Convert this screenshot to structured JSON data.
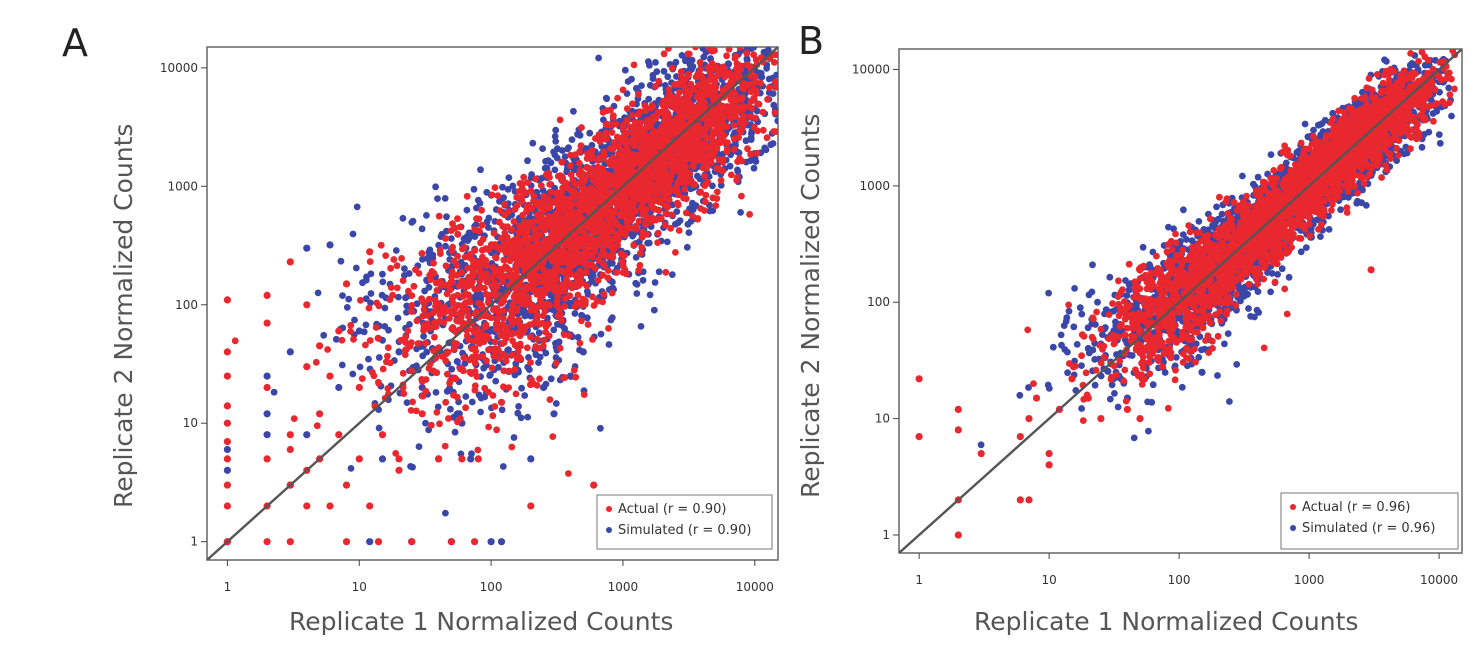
{
  "figure": {
    "panels": [
      {
        "letter": "A",
        "xlabel": "Replicate 1 Normalized Counts",
        "ylabel": "Replicate 2 Normalized Counts"
      },
      {
        "letter": "B",
        "xlabel": "Replicate 1 Normalized Counts",
        "ylabel": "Replicate 2 Normalized Counts"
      }
    ]
  },
  "colors": {
    "actual": "#e8282e",
    "simulated": "#3a46a8",
    "diagonal": "#555555",
    "frame": "#666666"
  },
  "chart_data": [
    {
      "type": "scatter",
      "panel": "A",
      "xlabel": "Replicate 1 Normalized Counts",
      "ylabel": "Replicate 2 Normalized Counts",
      "xscale": "log",
      "yscale": "log",
      "xlim": [
        0.7,
        15000
      ],
      "ylim": [
        0.7,
        15000
      ],
      "xticks": [
        "1",
        "10",
        "100",
        "1000",
        "10000"
      ],
      "yticks": [
        "1",
        "10",
        "100",
        "1000",
        "10000"
      ],
      "reference_line": "y = x",
      "legend_position": "bottom-right",
      "series": [
        {
          "name": "Actual (r = 0.90)",
          "color": "#e8282e",
          "r": 0.9,
          "spread_dex": 0.22,
          "points": [
            [
              1,
              1
            ],
            [
              1,
              2
            ],
            [
              1,
              3
            ],
            [
              1,
              5
            ],
            [
              1,
              7
            ],
            [
              1,
              10
            ],
            [
              1,
              14
            ],
            [
              1,
              25
            ],
            [
              1,
              40
            ],
            [
              1,
              110
            ],
            [
              2,
              1
            ],
            [
              2,
              2
            ],
            [
              2,
              5
            ],
            [
              2,
              20
            ],
            [
              2,
              70
            ],
            [
              2,
              120
            ],
            [
              3,
              1
            ],
            [
              3,
              3
            ],
            [
              3,
              6
            ],
            [
              3,
              8
            ],
            [
              3,
              230
            ],
            [
              4,
              2
            ],
            [
              4,
              4
            ],
            [
              4,
              30
            ],
            [
              4,
              100
            ],
            [
              5,
              5
            ],
            [
              5,
              12
            ],
            [
              5,
              45
            ],
            [
              6,
              2
            ],
            [
              6,
              25
            ],
            [
              7,
              8
            ],
            [
              7,
              60
            ],
            [
              8,
              1
            ],
            [
              8,
              3
            ],
            [
              8,
              150
            ],
            [
              10,
              5
            ],
            [
              10,
              20
            ],
            [
              12,
              2
            ],
            [
              12,
              280
            ],
            [
              14,
              1
            ],
            [
              15,
              8
            ],
            [
              20,
              5
            ],
            [
              20,
              4
            ],
            [
              25,
              1
            ],
            [
              30,
              12
            ],
            [
              40,
              5
            ],
            [
              50,
              1
            ],
            [
              60,
              5
            ],
            [
              75,
              1
            ],
            [
              80,
              5
            ],
            [
              120,
              15
            ],
            [
              200,
              2
            ],
            [
              600,
              3
            ],
            [
              13000,
              12000
            ]
          ]
        },
        {
          "name": "Simulated (r = 0.90)",
          "color": "#3a46a8",
          "r": 0.9,
          "spread_dex": 0.26,
          "points": [
            [
              1,
              1
            ],
            [
              1,
              4
            ],
            [
              1,
              6
            ],
            [
              2,
              8
            ],
            [
              2,
              12
            ],
            [
              2,
              25
            ],
            [
              3,
              40
            ],
            [
              3,
              3
            ],
            [
              4,
              8
            ],
            [
              4,
              300
            ],
            [
              6,
              320
            ],
            [
              7,
              20
            ],
            [
              10,
              60
            ],
            [
              12,
              1
            ],
            [
              15,
              5
            ],
            [
              20,
              40
            ],
            [
              25,
              1
            ],
            [
              30,
              20
            ],
            [
              40,
              5
            ],
            [
              50,
              1
            ],
            [
              60,
              10
            ],
            [
              70,
              5
            ],
            [
              100,
              1
            ],
            [
              120,
              1
            ],
            [
              200,
              5
            ],
            [
              250,
              20
            ],
            [
              300,
              12
            ],
            [
              400,
              25
            ],
            [
              500,
              40
            ],
            [
              8000,
              9000
            ]
          ]
        }
      ]
    },
    {
      "type": "scatter",
      "panel": "B",
      "xlabel": "Replicate 1 Normalized Counts",
      "ylabel": "Replicate 2 Normalized Counts",
      "xscale": "log",
      "yscale": "log",
      "xlim": [
        0.7,
        15000
      ],
      "ylim": [
        0.7,
        15000
      ],
      "xticks": [
        "1",
        "10",
        "100",
        "1000",
        "10000"
      ],
      "yticks": [
        "1",
        "10",
        "100",
        "1000",
        "10000"
      ],
      "reference_line": "y = x",
      "legend_position": "bottom-right",
      "series": [
        {
          "name": "Actual (r = 0.96)",
          "color": "#e8282e",
          "r": 0.96,
          "spread_dex": 0.12,
          "points": [
            [
              1,
              7
            ],
            [
              1,
              22
            ],
            [
              2,
              1
            ],
            [
              2,
              2
            ],
            [
              2,
              8
            ],
            [
              2,
              12
            ],
            [
              3,
              5
            ],
            [
              6,
              2
            ],
            [
              6,
              7
            ],
            [
              7,
              2
            ],
            [
              7,
              10
            ],
            [
              8,
              15
            ],
            [
              10,
              4
            ],
            [
              10,
              5
            ],
            [
              12,
              12
            ],
            [
              15,
              22
            ],
            [
              20,
              15
            ],
            [
              25,
              10
            ],
            [
              40,
              12
            ],
            [
              50,
              10
            ],
            [
              3000,
              190
            ],
            [
              3500,
              4000
            ]
          ]
        },
        {
          "name": "Simulated (r = 0.96)",
          "color": "#3a46a8",
          "r": 0.96,
          "spread_dex": 0.14,
          "points": [
            [
              20,
              40
            ],
            [
              40,
              15
            ],
            [
              60,
              100
            ],
            [
              150,
              25
            ],
            [
              400,
              250
            ],
            [
              5000,
              9000
            ]
          ]
        }
      ]
    }
  ]
}
